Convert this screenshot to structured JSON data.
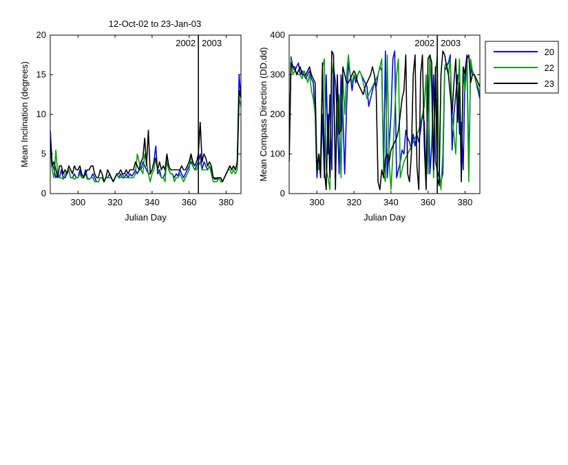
{
  "chart_data": [
    {
      "type": "line",
      "title": "12-Oct-02 to 23-Jan-03",
      "xlabel": "Julian Day",
      "ylabel": "Mean Inclination  (degrees)",
      "xlim": [
        285,
        388
      ],
      "ylim": [
        0,
        20
      ],
      "xticks": [
        300,
        320,
        340,
        360,
        380
      ],
      "yticks": [
        0,
        5,
        10,
        15,
        20
      ],
      "grid": false,
      "divider": {
        "x": 365,
        "left_label": "2002",
        "right_label": "2003"
      },
      "x": [
        285,
        286,
        287,
        288,
        289,
        290,
        291,
        292,
        293,
        294,
        295,
        296,
        297,
        298,
        299,
        300,
        301,
        302,
        303,
        304,
        305,
        306,
        307,
        308,
        309,
        310,
        311,
        312,
        313,
        314,
        315,
        316,
        317,
        318,
        319,
        320,
        321,
        322,
        323,
        324,
        325,
        326,
        327,
        328,
        329,
        330,
        331,
        332,
        333,
        334,
        335,
        336,
        337,
        338,
        339,
        340,
        341,
        342,
        343,
        344,
        345,
        346,
        347,
        348,
        349,
        350,
        351,
        352,
        353,
        354,
        355,
        356,
        357,
        358,
        359,
        360,
        361,
        362,
        363,
        364,
        365,
        366,
        367,
        368,
        369,
        370,
        371,
        372,
        373,
        374,
        375,
        376,
        377,
        378,
        379,
        380,
        381,
        382,
        383,
        384,
        385,
        386,
        387,
        388
      ],
      "series": [
        {
          "name": "20",
          "color": "#0000ff",
          "values": [
            8,
            4,
            3,
            2,
            2.5,
            2,
            3,
            2,
            2,
            2.5,
            3,
            2,
            2,
            2.5,
            2,
            2,
            3,
            2,
            2,
            3,
            2,
            1.8,
            2,
            2.5,
            2,
            1.5,
            1.5,
            2,
            2,
            1.5,
            2,
            2,
            2.5,
            2,
            1.5,
            2,
            2.5,
            2,
            2.5,
            2,
            2,
            2.5,
            2,
            2.5,
            2.2,
            2.5,
            3,
            2.5,
            3,
            3,
            4,
            3.5,
            3,
            2.5,
            2.5,
            3,
            4,
            6,
            2.5,
            3,
            2,
            2,
            2.5,
            4,
            3,
            2.5,
            2.5,
            2,
            2.5,
            2.2,
            3,
            2.5,
            2,
            2.5,
            3,
            3.5,
            4,
            3.5,
            3,
            3.5,
            4,
            5,
            3,
            4,
            3.5,
            3,
            3.5,
            3,
            2,
            2,
            1.8,
            2,
            2,
            1.5,
            2,
            2.5,
            3,
            3.5,
            3,
            3.5,
            3,
            4,
            15,
            12
          ]
        },
        {
          "name": "22",
          "color": "#00a000",
          "values": [
            6,
            3,
            2,
            5.5,
            2.5,
            2,
            2,
            1.8,
            2.5,
            2.5,
            3,
            2,
            2,
            1.8,
            2,
            2,
            2.5,
            2,
            2,
            2.5,
            1.8,
            1.8,
            2,
            2,
            1.5,
            1.5,
            1.5,
            2,
            2,
            1.5,
            2,
            2,
            2,
            2,
            1.5,
            2,
            2.5,
            2,
            2,
            2.5,
            2,
            2,
            2,
            2,
            2,
            2,
            2.5,
            5,
            4,
            3,
            2.5,
            5,
            4,
            2.5,
            1.5,
            2.5,
            3,
            4.5,
            3,
            2.5,
            2,
            2,
            1.5,
            4.5,
            3,
            2.5,
            2.5,
            1.5,
            2,
            2,
            2.5,
            2,
            1.5,
            2,
            2.5,
            3,
            5,
            3.5,
            3,
            3,
            3.5,
            4,
            3,
            3,
            3,
            3,
            3.5,
            2.5,
            1.5,
            1.5,
            1.5,
            2,
            1.5,
            1.5,
            2,
            2.5,
            3,
            3,
            2.5,
            3,
            2.5,
            3,
            12,
            11
          ]
        },
        {
          "name": "23",
          "color": "#000000",
          "values": [
            7,
            3.5,
            4,
            3,
            2,
            3.5,
            3.5,
            2.5,
            3,
            2.5,
            3.5,
            3,
            2.5,
            3.5,
            3,
            3,
            3.5,
            2.5,
            2,
            2.5,
            3,
            3,
            3.5,
            3.5,
            2.5,
            2,
            2,
            3,
            2.5,
            1.5,
            2,
            3,
            2.5,
            2,
            1.5,
            2,
            2.5,
            2.5,
            3,
            2.5,
            2.5,
            3,
            2.5,
            3,
            3,
            3,
            4,
            3.5,
            3,
            4,
            4.5,
            7,
            3.5,
            8,
            2.5,
            3,
            4,
            4.5,
            3,
            4,
            3,
            3.5,
            3,
            5,
            3.5,
            3,
            3,
            3,
            3,
            3,
            3,
            3.5,
            3,
            3,
            3.5,
            4,
            5,
            4,
            3.5,
            4,
            5,
            9,
            4,
            5,
            4.5,
            3.5,
            4,
            3.5,
            2,
            1.8,
            2,
            2,
            2,
            1.5,
            2,
            2.5,
            3,
            3.5,
            3,
            3.5,
            3,
            4,
            13,
            12
          ]
        }
      ]
    },
    {
      "type": "line",
      "title": "",
      "xlabel": "Julian Day",
      "ylabel": "Mean Compass Direction (DD.dd)",
      "xlim": [
        285,
        388
      ],
      "ylim": [
        0,
        400
      ],
      "xticks": [
        300,
        320,
        340,
        360,
        380
      ],
      "yticks": [
        0,
        100,
        200,
        300,
        400
      ],
      "grid": false,
      "divider": {
        "x": 365,
        "left_label": "2002",
        "right_label": "2003"
      },
      "legend": {
        "placement": "outside-top-right",
        "entries": [
          "20",
          "22",
          "23"
        ]
      },
      "x": [
        285,
        286,
        287,
        288,
        289,
        290,
        291,
        292,
        293,
        294,
        295,
        296,
        297,
        298,
        299,
        300,
        301,
        302,
        303,
        304,
        305,
        306,
        307,
        308,
        309,
        310,
        311,
        312,
        313,
        314,
        315,
        316,
        317,
        318,
        319,
        320,
        321,
        322,
        323,
        324,
        325,
        326,
        327,
        328,
        329,
        330,
        331,
        332,
        333,
        334,
        335,
        336,
        337,
        338,
        339,
        340,
        341,
        342,
        343,
        344,
        345,
        346,
        347,
        348,
        349,
        350,
        351,
        352,
        353,
        354,
        355,
        356,
        357,
        358,
        359,
        360,
        361,
        362,
        363,
        364,
        365,
        366,
        367,
        368,
        369,
        370,
        371,
        372,
        373,
        374,
        375,
        376,
        377,
        378,
        379,
        380,
        381,
        382,
        383,
        384,
        385,
        386,
        387,
        388
      ],
      "series": [
        {
          "name": "20",
          "color": "#0000ff",
          "values": [
            110,
            345,
            320,
            310,
            320,
            330,
            300,
            310,
            300,
            290,
            300,
            310,
            290,
            280,
            200,
            40,
            100,
            60,
            200,
            40,
            300,
            100,
            250,
            60,
            320,
            280,
            200,
            50,
            300,
            200,
            50,
            220,
            330,
            300,
            260,
            300,
            280,
            300,
            310,
            300,
            290,
            280,
            270,
            220,
            240,
            260,
            280,
            270,
            300,
            320,
            310,
            60,
            360,
            40,
            120,
            200,
            340,
            360,
            40,
            60,
            80,
            110,
            100,
            160,
            140,
            130,
            110,
            150,
            120,
            150,
            130,
            160,
            200,
            180,
            40,
            300,
            50,
            120,
            300,
            80,
            60,
            40,
            30,
            50,
            310,
            320,
            330,
            350,
            110,
            200,
            250,
            300,
            150,
            180,
            60,
            310,
            350,
            60,
            320,
            300,
            300,
            280,
            260,
            240
          ]
        },
        {
          "name": "22",
          "color": "#00a000",
          "values": [
            100,
            340,
            300,
            310,
            305,
            300,
            300,
            290,
            310,
            300,
            280,
            300,
            260,
            240,
            200,
            80,
            60,
            100,
            320,
            340,
            60,
            40,
            10,
            300,
            330,
            40,
            200,
            250,
            40,
            300,
            200,
            300,
            350,
            300,
            280,
            300,
            290,
            300,
            310,
            300,
            280,
            260,
            240,
            250,
            260,
            270,
            280,
            290,
            300,
            320,
            340,
            50,
            30,
            350,
            80,
            10,
            100,
            200,
            300,
            340,
            40,
            60,
            80,
            90,
            100,
            110,
            120,
            130,
            140,
            150,
            160,
            180,
            200,
            220,
            300,
            50,
            350,
            250,
            40,
            300,
            350,
            60,
            10,
            100,
            320,
            330,
            300,
            340,
            200,
            150,
            100,
            250,
            340,
            50,
            310,
            260,
            330,
            30,
            340,
            310,
            300,
            280,
            270,
            250
          ]
        },
        {
          "name": "23",
          "color": "#000000",
          "values": [
            80,
            330,
            320,
            320,
            300,
            310,
            320,
            300,
            300,
            300,
            310,
            320,
            300,
            290,
            280,
            60,
            100,
            40,
            330,
            60,
            10,
            200,
            40,
            360,
            350,
            10,
            300,
            150,
            160,
            320,
            300,
            280,
            280,
            290,
            300,
            310,
            300,
            280,
            270,
            260,
            250,
            270,
            280,
            290,
            300,
            320,
            300,
            260,
            30,
            10,
            60,
            40,
            90,
            100,
            80,
            110,
            120,
            130,
            140,
            160,
            200,
            240,
            260,
            350,
            50,
            30,
            100,
            300,
            350,
            70,
            10,
            300,
            350,
            120,
            10,
            340,
            350,
            330,
            60,
            320,
            40,
            20,
            300,
            360,
            350,
            320,
            300,
            250,
            200,
            280,
            340,
            180,
            280,
            30,
            320,
            300,
            340,
            350,
            280,
            300,
            300,
            290,
            280,
            270
          ]
        }
      ]
    }
  ]
}
